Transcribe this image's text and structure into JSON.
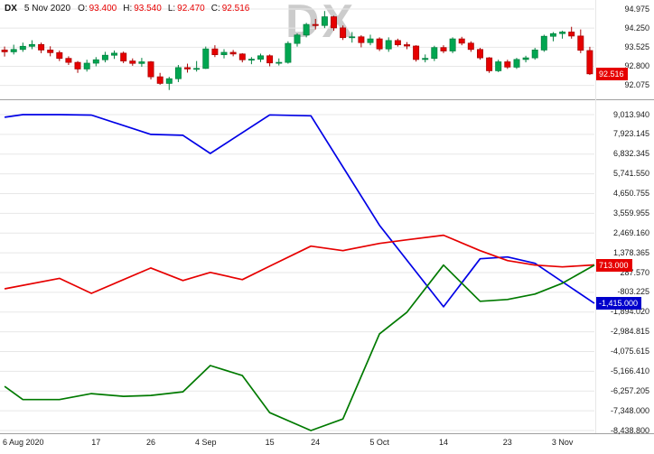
{
  "info_bar": {
    "symbol": "DX",
    "date": "5 Nov 2020",
    "open_label": "O:",
    "open": "93.400",
    "high_label": "H:",
    "high": "93.540",
    "low_label": "L:",
    "low": "92.470",
    "close_label": "C:",
    "close": "92.516"
  },
  "colors": {
    "background": "#ffffff",
    "grid": "#e7e7e7",
    "separator": "#a0a0a0",
    "axis_text": "#1a1a1a",
    "ohlc_value": "#e60000",
    "watermark": "#cccccc",
    "candle_up": "#00a651",
    "candle_up_border": "#00803e",
    "candle_down": "#e60000",
    "candle_down_border": "#a80000",
    "line_blue": "#0000e6",
    "line_red": "#e60000",
    "line_green": "#007a00",
    "badge_red_bg": "#e60000",
    "badge_blue_bg": "#0000cc",
    "badge_text": "#ffffff"
  },
  "chart_data": [
    {
      "type": "candlestick",
      "symbol": "DX",
      "watermark": "DX",
      "axis": {
        "ticks": [
          {
            "v": 94.975,
            "label": "94.975"
          },
          {
            "v": 94.25,
            "label": "94.250"
          },
          {
            "v": 93.525,
            "label": "93.525"
          },
          {
            "v": 92.8,
            "label": "92.800"
          },
          {
            "v": 92.075,
            "label": "92.075"
          }
        ],
        "badge": {
          "v": 92.516,
          "label": "92.516"
        }
      },
      "x_labels": [
        {
          "label": "6 Aug 2020",
          "i": 0
        },
        {
          "label": "17",
          "i": 10
        },
        {
          "label": "26",
          "i": 16
        },
        {
          "label": "4 Sep",
          "i": 22
        },
        {
          "label": "15",
          "i": 29
        },
        {
          "label": "24",
          "i": 34
        },
        {
          "label": "5 Oct",
          "i": 41
        },
        {
          "label": "14",
          "i": 48
        },
        {
          "label": "23",
          "i": 55
        },
        {
          "label": "3 Nov",
          "i": 61
        }
      ],
      "candles": [
        [
          93.42,
          93.55,
          93.17,
          93.35
        ],
        [
          93.35,
          93.62,
          93.25,
          93.44
        ],
        [
          93.44,
          93.7,
          93.35,
          93.56
        ],
        [
          93.56,
          93.79,
          93.45,
          93.63
        ],
        [
          93.63,
          93.7,
          93.3,
          93.42
        ],
        [
          93.42,
          93.56,
          93.18,
          93.32
        ],
        [
          93.32,
          93.4,
          93.0,
          93.1
        ],
        [
          93.1,
          93.18,
          92.85,
          92.95
        ],
        [
          92.95,
          93.0,
          92.55,
          92.7
        ],
        [
          92.7,
          93.05,
          92.6,
          92.92
        ],
        [
          92.92,
          93.15,
          92.8,
          93.05
        ],
        [
          93.05,
          93.35,
          92.95,
          93.22
        ],
        [
          93.22,
          93.4,
          93.08,
          93.3
        ],
        [
          93.3,
          93.36,
          92.92,
          93.0
        ],
        [
          93.0,
          93.1,
          92.82,
          92.91
        ],
        [
          92.91,
          93.12,
          92.78,
          92.97
        ],
        [
          92.97,
          93.0,
          92.3,
          92.4
        ],
        [
          92.4,
          92.55,
          92.1,
          92.15
        ],
        [
          92.15,
          92.4,
          91.9,
          92.33
        ],
        [
          92.33,
          92.85,
          92.2,
          92.75
        ],
        [
          92.75,
          92.9,
          92.56,
          92.7
        ],
        [
          92.7,
          93.0,
          92.6,
          92.72
        ],
        [
          92.72,
          93.55,
          92.7,
          93.46
        ],
        [
          93.46,
          93.6,
          93.15,
          93.24
        ],
        [
          93.24,
          93.45,
          93.1,
          93.33
        ],
        [
          93.33,
          93.42,
          93.18,
          93.27
        ],
        [
          93.27,
          93.3,
          92.95,
          93.05
        ],
        [
          93.05,
          93.15,
          92.88,
          93.07
        ],
        [
          93.07,
          93.28,
          92.96,
          93.2
        ],
        [
          93.2,
          93.25,
          92.8,
          92.93
        ],
        [
          92.93,
          93.1,
          92.83,
          92.95
        ],
        [
          92.95,
          93.75,
          92.9,
          93.67
        ],
        [
          93.67,
          94.05,
          93.55,
          93.99
        ],
        [
          93.99,
          94.45,
          93.9,
          94.39
        ],
        [
          94.39,
          94.6,
          94.2,
          94.35
        ],
        [
          94.35,
          94.9,
          94.25,
          94.68
        ],
        [
          94.68,
          94.72,
          94.15,
          94.26
        ],
        [
          94.26,
          94.35,
          93.8,
          93.89
        ],
        [
          93.89,
          94.1,
          93.7,
          93.92
        ],
        [
          93.92,
          93.98,
          93.52,
          93.7
        ],
        [
          93.7,
          94.0,
          93.6,
          93.84
        ],
        [
          93.84,
          93.9,
          93.38,
          93.46
        ],
        [
          93.46,
          93.9,
          93.35,
          93.78
        ],
        [
          93.78,
          93.85,
          93.55,
          93.62
        ],
        [
          93.62,
          93.72,
          93.45,
          93.57
        ],
        [
          93.57,
          93.6,
          92.98,
          93.06
        ],
        [
          93.06,
          93.25,
          92.95,
          93.1
        ],
        [
          93.1,
          93.58,
          93.0,
          93.51
        ],
        [
          93.51,
          93.6,
          93.3,
          93.38
        ],
        [
          93.38,
          93.9,
          93.3,
          93.84
        ],
        [
          93.84,
          93.92,
          93.6,
          93.68
        ],
        [
          93.68,
          93.75,
          93.35,
          93.44
        ],
        [
          93.44,
          93.5,
          93.05,
          93.12
        ],
        [
          93.12,
          93.15,
          92.55,
          92.63
        ],
        [
          92.63,
          93.05,
          92.58,
          92.97
        ],
        [
          92.97,
          93.05,
          92.7,
          92.77
        ],
        [
          92.77,
          93.12,
          92.7,
          93.06
        ],
        [
          93.06,
          93.2,
          92.95,
          93.12
        ],
        [
          93.12,
          93.5,
          93.05,
          93.42
        ],
        [
          93.42,
          94.0,
          93.35,
          93.94
        ],
        [
          93.94,
          94.1,
          93.75,
          94.04
        ],
        [
          94.04,
          94.15,
          93.85,
          94.1
        ],
        [
          94.1,
          94.3,
          93.85,
          93.95
        ],
        [
          93.95,
          94.2,
          93.3,
          93.41
        ],
        [
          93.4,
          93.54,
          92.47,
          92.516
        ]
      ]
    },
    {
      "type": "line",
      "axis": {
        "ticks": [
          {
            "v": 9013.94,
            "label": "9,013.940"
          },
          {
            "v": 7923.145,
            "label": "7,923.145"
          },
          {
            "v": 6832.345,
            "label": "6,832.345"
          },
          {
            "v": 5741.55,
            "label": "5,741.550"
          },
          {
            "v": 4650.755,
            "label": "4,650.755"
          },
          {
            "v": 3559.955,
            "label": "3,559.955"
          },
          {
            "v": 2469.16,
            "label": "2,469.160"
          },
          {
            "v": 1378.365,
            "label": "1,378.365"
          },
          {
            "v": 287.57,
            "label": "287.570"
          },
          {
            "v": -803.225,
            "label": "-803.225"
          },
          {
            "v": -1894.02,
            "label": "-1,894.020"
          },
          {
            "v": -2984.815,
            "label": "-2,984.815"
          },
          {
            "v": -4075.615,
            "label": "-4,075.615"
          },
          {
            "v": -5166.41,
            "label": "-5,166.410"
          },
          {
            "v": -6257.205,
            "label": "-6,257.205"
          },
          {
            "v": -7348.0,
            "label": "-7,348.000"
          },
          {
            "v": -8438.8,
            "label": "-8,438.800"
          }
        ],
        "badges": [
          {
            "label": "713.000",
            "v": 713.0,
            "color_key": "badge_red_bg"
          },
          {
            "label": "-1,415.000",
            "v": -1415.0,
            "color_key": "badge_blue_bg"
          }
        ]
      },
      "series": [
        {
          "name": "blue-line",
          "color_key": "line_blue",
          "last_value": -1415.0,
          "points": [
            [
              0,
              8870
            ],
            [
              2,
              9014
            ],
            [
              6,
              9014
            ],
            [
              9.5,
              8990
            ],
            [
              16,
              7920
            ],
            [
              19.5,
              7870
            ],
            [
              22.5,
              6870
            ],
            [
              29,
              9000
            ],
            [
              33.5,
              8950
            ],
            [
              41,
              2900
            ],
            [
              48,
              -1600
            ],
            [
              52,
              1050
            ],
            [
              55,
              1150
            ],
            [
              58,
              800
            ],
            [
              64.5,
              -1415
            ]
          ]
        },
        {
          "name": "red-line",
          "color_key": "line_red",
          "last_value": 713.0,
          "points": [
            [
              0,
              -610
            ],
            [
              6,
              -30
            ],
            [
              9.5,
              -860
            ],
            [
              16,
              540
            ],
            [
              19.5,
              -150
            ],
            [
              22.5,
              300
            ],
            [
              26,
              -100
            ],
            [
              29,
              640
            ],
            [
              33.5,
              1750
            ],
            [
              37,
              1500
            ],
            [
              41,
              1900
            ],
            [
              44,
              2100
            ],
            [
              48,
              2350
            ],
            [
              52,
              1500
            ],
            [
              55,
              950
            ],
            [
              58,
              700
            ],
            [
              61,
              600
            ],
            [
              64.5,
              713
            ]
          ]
        },
        {
          "name": "green-line",
          "color_key": "line_green",
          "last_value": 700.0,
          "points": [
            [
              0,
              -6000
            ],
            [
              2,
              -6730
            ],
            [
              6,
              -6730
            ],
            [
              9.5,
              -6400
            ],
            [
              13,
              -6550
            ],
            [
              16,
              -6500
            ],
            [
              19.5,
              -6300
            ],
            [
              22.5,
              -4850
            ],
            [
              26,
              -5400
            ],
            [
              29,
              -7450
            ],
            [
              33.5,
              -8438.8
            ],
            [
              37,
              -7800
            ],
            [
              41,
              -3100
            ],
            [
              44,
              -1900
            ],
            [
              48,
              700
            ],
            [
              52,
              -1300
            ],
            [
              55,
              -1200
            ],
            [
              58,
              -900
            ],
            [
              61,
              -300
            ],
            [
              64.5,
              700
            ]
          ]
        }
      ]
    }
  ]
}
